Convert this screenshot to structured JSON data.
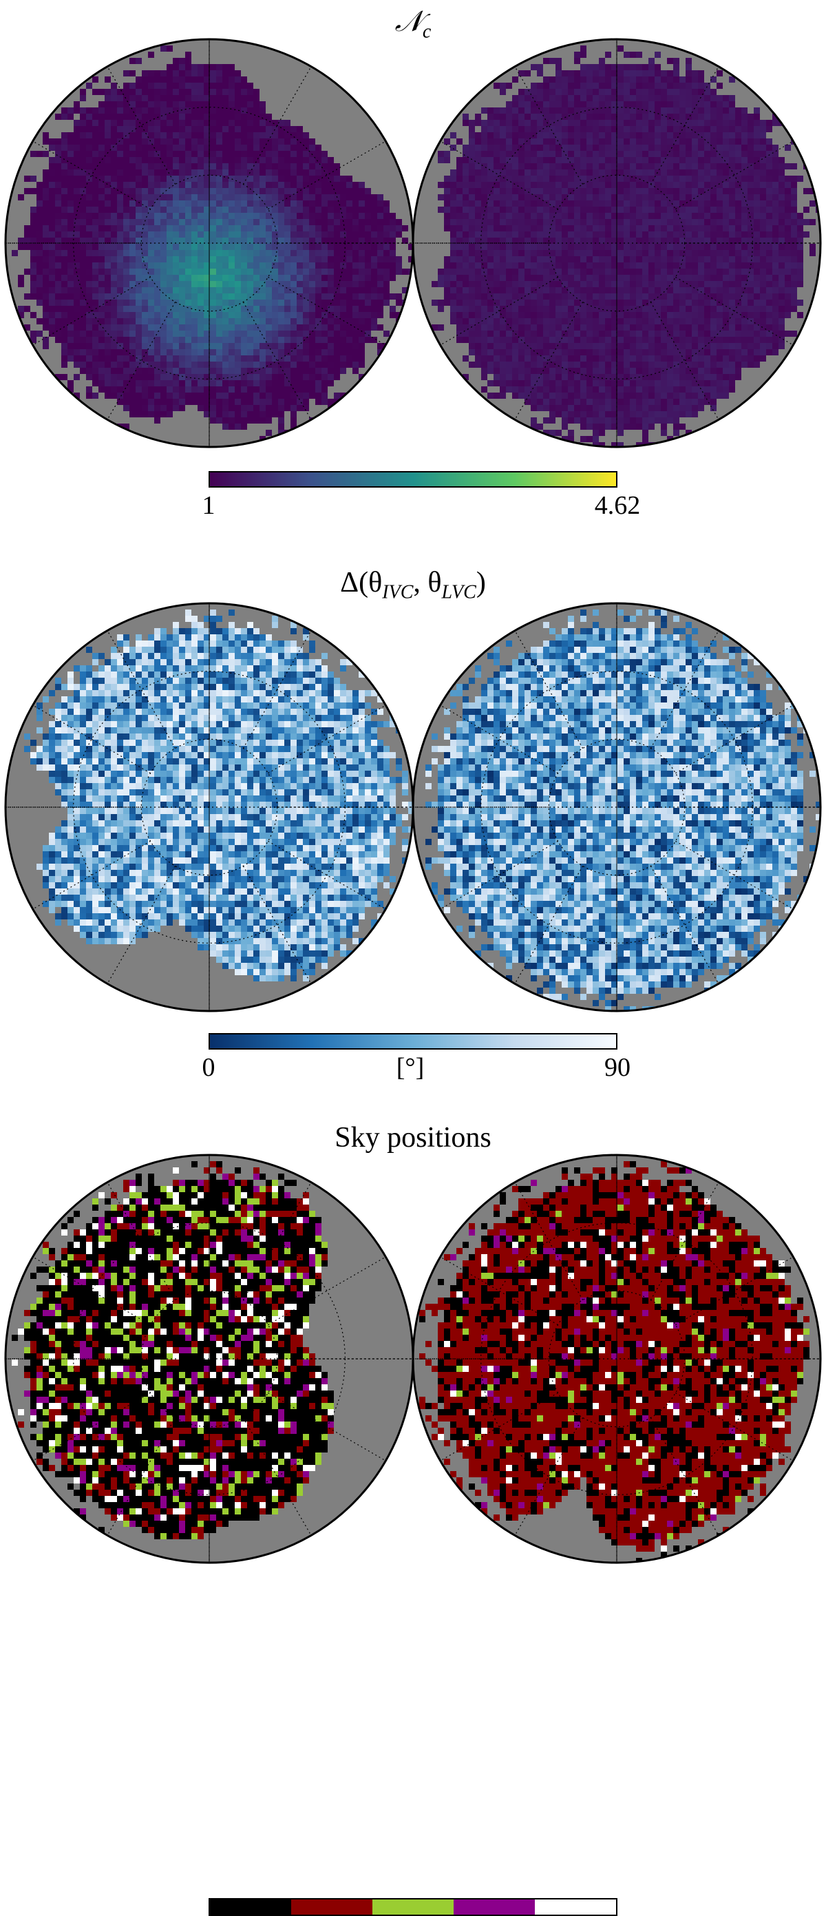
{
  "panels": [
    {
      "key": "nc",
      "title_main": "𝒩",
      "title_sub": "c",
      "colormap": "viridis",
      "colorbar": {
        "min_label": "1",
        "max_label": "4.62",
        "min": 1,
        "max": 4.62,
        "mid_label": ""
      },
      "colors": [
        "#440154",
        "#3b528b",
        "#21918c",
        "#5ec962",
        "#fde725"
      ]
    },
    {
      "key": "delta",
      "title_text": "Δ(θ",
      "title_sub1": "IVC",
      "title_mid": ", θ",
      "title_sub2": "LVC",
      "title_end": ")",
      "colormap": "blues",
      "colorbar": {
        "min_label": "0",
        "mid_label": "[°]",
        "max_label": "90",
        "min": 0,
        "max": 90
      },
      "colors": [
        "#08306b",
        "#2171b5",
        "#6baed6",
        "#c6dbef",
        "#f7fbff"
      ]
    },
    {
      "key": "sky",
      "title": "Sky positions",
      "colormap": "categorical",
      "categories": [
        "black",
        "dark-red",
        "yellow-green",
        "purple",
        "white"
      ],
      "colors": [
        "#000000",
        "#8b0000",
        "#9acd32",
        "#8b008b",
        "#ffffff"
      ]
    }
  ],
  "chart_data": [
    {
      "type": "heatmap",
      "title": "𝒩c",
      "projection": "orthographic hemispheres (north, south)",
      "value_range": [
        1,
        4.62
      ],
      "colorbar_ticks": [
        "1",
        "4.62"
      ]
    },
    {
      "type": "heatmap",
      "title": "Δ(θIVC, θLVC)",
      "projection": "orthographic hemispheres (north, south)",
      "value_range": [
        0,
        90
      ],
      "units": "[°]",
      "colorbar_ticks": [
        "0",
        "90"
      ]
    },
    {
      "type": "heatmap",
      "title": "Sky positions",
      "projection": "orthographic hemispheres (north, south)",
      "categories": 5
    }
  ]
}
